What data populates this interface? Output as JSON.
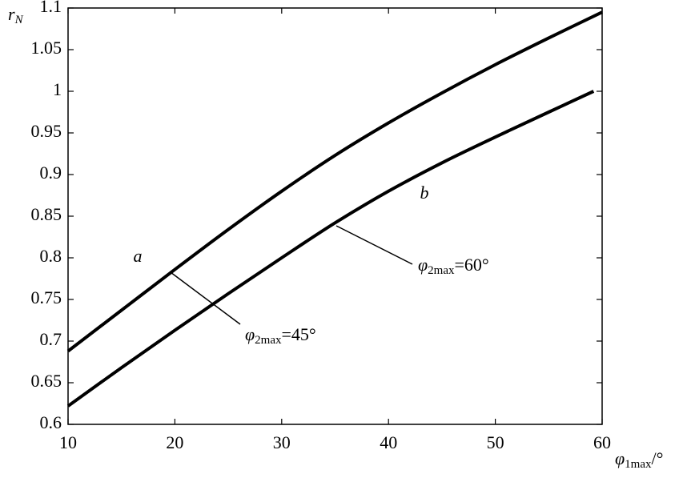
{
  "chart_data": {
    "type": "line",
    "y_label": {
      "symbol": "r",
      "sub": "N"
    },
    "x_label": {
      "symbol": "φ",
      "sub": "1max",
      "suffix": "/°"
    },
    "xlim": [
      10,
      60
    ],
    "xticks": [
      10,
      20,
      30,
      40,
      50,
      60
    ],
    "ylim": [
      0.6,
      1.1
    ],
    "yticks": [
      0.6,
      0.65,
      0.7,
      0.75,
      0.8,
      0.85,
      0.9,
      0.95,
      1,
      1.05,
      1.1
    ],
    "series": [
      {
        "name": "a",
        "color": "#000000",
        "x": [
          10,
          15,
          20,
          25,
          30,
          35,
          40,
          45,
          50,
          55,
          60
        ],
        "values": [
          0.688,
          0.737,
          0.786,
          0.834,
          0.88,
          0.923,
          0.962,
          0.998,
          1.032,
          1.064,
          1.095
        ]
      },
      {
        "name": "b",
        "color": "#000000",
        "x": [
          10,
          15,
          20,
          25,
          30,
          35,
          40,
          45,
          50,
          55,
          59.2
        ],
        "values": [
          0.622,
          0.668,
          0.713,
          0.757,
          0.8,
          0.842,
          0.88,
          0.914,
          0.945,
          0.975,
          1.0
        ]
      }
    ],
    "annotations": [
      {
        "symbol": "φ",
        "sub": "2max",
        "suffix": "=45°"
      },
      {
        "symbol": "φ",
        "sub": "2max",
        "suffix": "=60°"
      }
    ]
  }
}
